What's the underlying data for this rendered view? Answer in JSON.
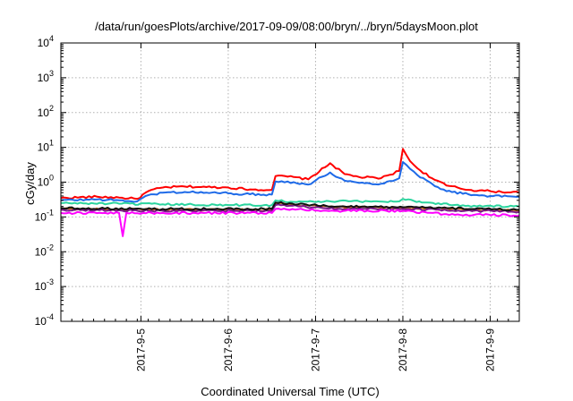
{
  "chart_data": {
    "type": "line",
    "title": "/data/run/goesPlots/archive/2017-09-09/08:00/bryn/../bryn/5daysMoon.plot",
    "xlabel": "Coordinated Universal Time (UTC)",
    "ylabel": "cGy/day",
    "y_scale": "log",
    "ylim": [
      0.0001,
      10000
    ],
    "y_ticks": [
      {
        "value": 0.0001,
        "base": "10",
        "exp": "-4"
      },
      {
        "value": 0.001,
        "base": "10",
        "exp": "-3"
      },
      {
        "value": 0.01,
        "base": "10",
        "exp": "-2"
      },
      {
        "value": 0.1,
        "base": "10",
        "exp": "-1"
      },
      {
        "value": 1,
        "base": "10",
        "exp": "0"
      },
      {
        "value": 10,
        "base": "10",
        "exp": "1"
      },
      {
        "value": 100,
        "base": "10",
        "exp": "2"
      },
      {
        "value": 1000,
        "base": "10",
        "exp": "3"
      },
      {
        "value": 10000,
        "base": "10",
        "exp": "4"
      }
    ],
    "xlim": [
      "2017-09-04 02:00",
      "2017-09-09 08:00"
    ],
    "x_ticks": [
      "2017-9-5",
      "2017-9-6",
      "2017-9-7",
      "2017-9-8",
      "2017-9-9"
    ],
    "grid": true,
    "series": [
      {
        "color": "#ff0000",
        "x": [
          "2017-09-04 02:00",
          "2017-09-04 12:00",
          "2017-09-04 18:00",
          "2017-09-04 23:00",
          "2017-09-05 02:00",
          "2017-09-05 06:00",
          "2017-09-05 12:00",
          "2017-09-05 18:00",
          "2017-09-06 00:00",
          "2017-09-06 06:00",
          "2017-09-06 12:00",
          "2017-09-06 13:00",
          "2017-09-06 18:00",
          "2017-09-06 22:00",
          "2017-09-07 04:00",
          "2017-09-07 08:00",
          "2017-09-07 12:00",
          "2017-09-07 18:00",
          "2017-09-07 23:00",
          "2017-09-08 00:00",
          "2017-09-08 02:00",
          "2017-09-08 04:00",
          "2017-09-08 08:00",
          "2017-09-08 12:00",
          "2017-09-08 18:00",
          "2017-09-09 00:00",
          "2017-09-09 08:00"
        ],
        "y": [
          0.35,
          0.38,
          0.36,
          0.33,
          0.55,
          0.7,
          0.75,
          0.72,
          0.7,
          0.62,
          0.6,
          1.5,
          1.4,
          1.2,
          3.5,
          1.7,
          1.4,
          1.3,
          2.1,
          9.0,
          4.0,
          2.5,
          1.3,
          0.8,
          0.6,
          0.55,
          0.5
        ]
      },
      {
        "color": "#1e6ae8",
        "x": [
          "2017-09-04 02:00",
          "2017-09-04 12:00",
          "2017-09-04 18:00",
          "2017-09-04 23:00",
          "2017-09-05 02:00",
          "2017-09-05 06:00",
          "2017-09-05 12:00",
          "2017-09-05 18:00",
          "2017-09-06 00:00",
          "2017-09-06 06:00",
          "2017-09-06 12:00",
          "2017-09-06 13:00",
          "2017-09-06 18:00",
          "2017-09-06 22:00",
          "2017-09-07 04:00",
          "2017-09-07 08:00",
          "2017-09-07 12:00",
          "2017-09-07 18:00",
          "2017-09-07 23:00",
          "2017-09-08 00:00",
          "2017-09-08 02:00",
          "2017-09-08 04:00",
          "2017-09-08 08:00",
          "2017-09-08 12:00",
          "2017-09-08 18:00",
          "2017-09-09 00:00",
          "2017-09-09 08:00"
        ],
        "y": [
          0.3,
          0.32,
          0.3,
          0.28,
          0.42,
          0.5,
          0.52,
          0.5,
          0.48,
          0.45,
          0.44,
          1.05,
          1.0,
          0.85,
          1.9,
          1.1,
          0.95,
          0.9,
          1.3,
          3.8,
          2.4,
          1.6,
          0.9,
          0.55,
          0.45,
          0.4,
          0.38
        ]
      },
      {
        "color": "#2bd49e",
        "x": [
          "2017-09-04 02:00",
          "2017-09-04 18:00",
          "2017-09-05 06:00",
          "2017-09-06 00:00",
          "2017-09-06 12:00",
          "2017-09-06 13:00",
          "2017-09-06 18:00",
          "2017-09-07 06:00",
          "2017-09-07 23:00",
          "2017-09-08 00:00",
          "2017-09-08 06:00",
          "2017-09-08 18:00",
          "2017-09-09 08:00"
        ],
        "y": [
          0.25,
          0.24,
          0.23,
          0.22,
          0.22,
          0.3,
          0.27,
          0.28,
          0.28,
          0.33,
          0.26,
          0.21,
          0.2
        ]
      },
      {
        "color": "#cc6a1a",
        "x": [
          "2017-09-04 02:00",
          "2017-09-05 06:00",
          "2017-09-06 12:00",
          "2017-09-06 13:00",
          "2017-09-07 06:00",
          "2017-09-08 00:00",
          "2017-09-09 08:00"
        ],
        "y": [
          0.17,
          0.16,
          0.16,
          0.24,
          0.19,
          0.18,
          0.15
        ]
      },
      {
        "color": "#7a1a8a",
        "x": [
          "2017-09-04 02:00",
          "2017-09-05 06:00",
          "2017-09-06 12:00",
          "2017-09-06 13:00",
          "2017-09-07 06:00",
          "2017-09-08 00:00",
          "2017-09-09 08:00"
        ],
        "y": [
          0.16,
          0.15,
          0.15,
          0.22,
          0.17,
          0.17,
          0.14
        ]
      },
      {
        "color": "#111111",
        "x": [
          "2017-09-04 02:00",
          "2017-09-05 06:00",
          "2017-09-06 12:00",
          "2017-09-06 13:00",
          "2017-09-07 06:00",
          "2017-09-08 00:00",
          "2017-09-09 08:00"
        ],
        "y": [
          0.18,
          0.17,
          0.17,
          0.26,
          0.2,
          0.19,
          0.16
        ]
      },
      {
        "color": "#ff00ff",
        "x": [
          "2017-09-04 02:00",
          "2017-09-04 18:00",
          "2017-09-04 19:00",
          "2017-09-04 20:00",
          "2017-09-05 06:00",
          "2017-09-06 12:00",
          "2017-09-06 13:00",
          "2017-09-07 06:00",
          "2017-09-08 00:00",
          "2017-09-08 12:00",
          "2017-09-09 08:00"
        ],
        "y": [
          0.13,
          0.13,
          0.028,
          0.13,
          0.13,
          0.13,
          0.17,
          0.15,
          0.15,
          0.12,
          0.11
        ]
      }
    ]
  }
}
